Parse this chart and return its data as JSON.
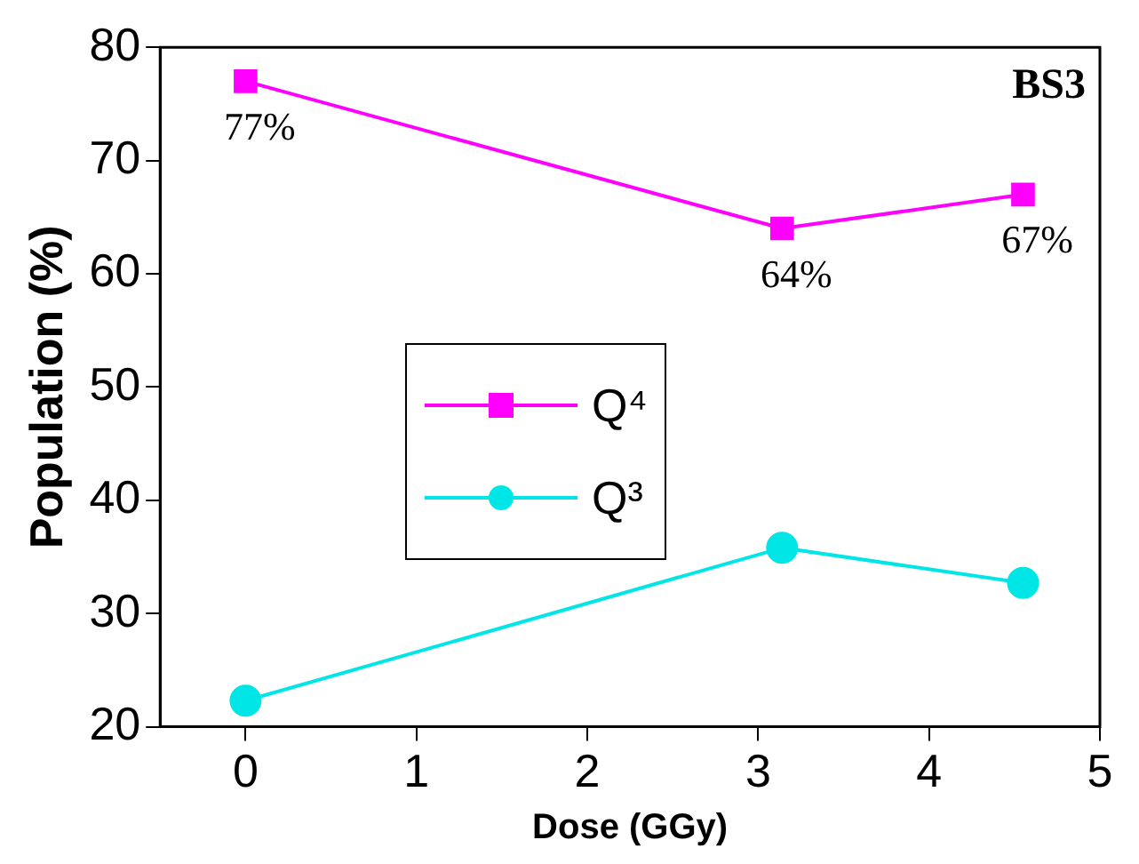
{
  "chart_data": {
    "type": "line",
    "xlabel": "Dose (GGy)",
    "ylabel": "Population (%)",
    "annotations": [
      "BS3"
    ],
    "xlim": [
      -0.5,
      5
    ],
    "xticks": [
      0,
      1,
      2,
      3,
      4,
      5
    ],
    "ylim": [
      20,
      80
    ],
    "yticks": [
      20,
      30,
      40,
      50,
      60,
      70,
      80
    ],
    "grid": false,
    "legend": "left",
    "x": [
      0,
      3.14,
      4.55
    ],
    "series": [
      {
        "name": "Q⁴",
        "color": "#ff00ff",
        "marker": "square",
        "values": [
          77,
          64,
          67
        ],
        "value_labels": [
          "77%",
          "64%",
          "67%"
        ]
      },
      {
        "name": "Q³",
        "color": "#00e5e5",
        "marker": "circle",
        "values": [
          22.3,
          35.8,
          32.7
        ]
      }
    ]
  }
}
